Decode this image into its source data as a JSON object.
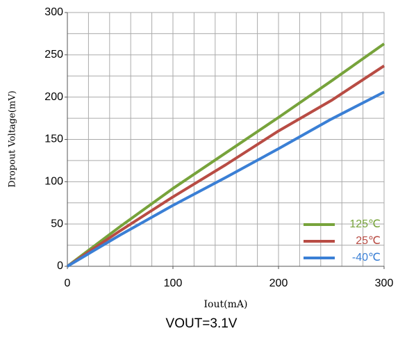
{
  "chart_data": {
    "type": "line",
    "title": "VOUT=3.1V",
    "x_label": "Iout(mA)",
    "y_label": "Dropout Voltage(mV)",
    "x": [
      0,
      50,
      100,
      150,
      200,
      250,
      300
    ],
    "series": [
      {
        "name": "125℃",
        "color": "#77a33b",
        "values": [
          0,
          47,
          92,
          134,
          176,
          219,
          263
        ]
      },
      {
        "name": "25℃",
        "color": "#b84c44",
        "values": [
          0,
          42,
          82,
          120,
          160,
          196,
          237
        ]
      },
      {
        "name": "-40℃",
        "color": "#3a7fd5",
        "values": [
          0,
          37,
          72,
          105,
          139,
          174,
          206
        ]
      }
    ],
    "xlim": [
      0,
      300
    ],
    "ylim": [
      0,
      300
    ],
    "xticks": [
      0,
      100,
      200,
      300
    ],
    "yticks": [
      0,
      50,
      100,
      150,
      200,
      250,
      300
    ],
    "xgrid": [
      20,
      40,
      60,
      80,
      100,
      120,
      140,
      160,
      180,
      200,
      220,
      240,
      260,
      280,
      300
    ],
    "ygrid": [
      25,
      50,
      75,
      100,
      125,
      150,
      175,
      200,
      225,
      250,
      275,
      300
    ],
    "legend": "lower right"
  }
}
